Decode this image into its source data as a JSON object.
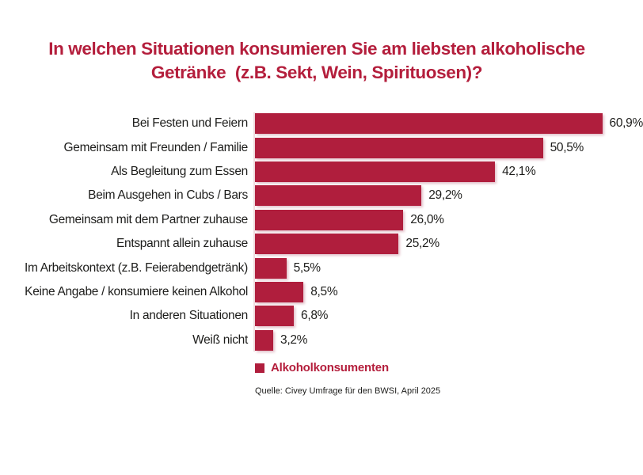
{
  "title": {
    "lines": [
      "In welchen Situationen konsumieren Sie am liebsten alkoholische",
      "Getränke  (z.B. Sekt, Wein, Spirituosen)?"
    ]
  },
  "legend": {
    "label": "Alkoholkonsumenten",
    "color": "#b01e3d"
  },
  "source": {
    "text": "Quelle: Civey Umfrage für den BWSI, April 2025"
  },
  "colors": {
    "bar": "#b01e3d",
    "title": "#b41e3c",
    "text": "#1d1d1b",
    "axis_line": "#f0dcdf",
    "background": "#ffffff"
  },
  "chart_data": {
    "type": "bar",
    "orientation": "horizontal",
    "title": "In welchen Situationen konsumieren Sie am liebsten alkoholische Getränke (z.B. Sekt, Wein, Spirituosen)?",
    "series_name": "Alkoholkonsumenten",
    "categories": [
      "Bei Festen und Feiern",
      "Gemeinsam mit Freunden / Familie",
      "Als Begleitung zum Essen",
      "Beim Ausgehen in Cubs / Bars",
      "Gemeinsam mit dem Partner zuhause",
      "Entspannt allein zuhause",
      "Im Arbeitskontext (z.B. Feierabendgetränk)",
      "Keine Angabe / konsumiere keinen Alkohol",
      "In anderen Situationen",
      "Weiß nicht"
    ],
    "values": [
      60.9,
      50.5,
      42.1,
      29.2,
      26.0,
      25.2,
      5.5,
      8.5,
      6.8,
      3.2
    ],
    "value_labels": [
      "60,9%",
      "50,5%",
      "42,1%",
      "29,2%",
      "26,0%",
      "25,2%",
      "5,5%",
      "8,5%",
      "6,8%",
      "3,2%"
    ],
    "xlabel": "",
    "ylabel": "",
    "xlim": [
      0,
      66
    ],
    "grid": false,
    "value_label_format": "german-decimal-comma-percent",
    "legend_position": "bottom"
  }
}
